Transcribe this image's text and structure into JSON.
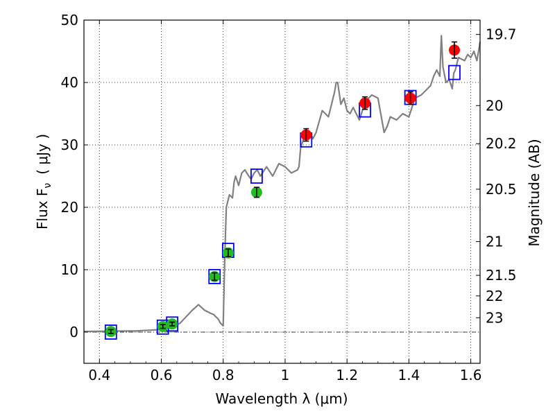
{
  "chart_data": {
    "type": "scatter",
    "xlabel": "Wavelength  λ (μm)",
    "ylabel_left": "Flux  F",
    "ylabel_left_sub": "ν",
    "ylabel_left_unit": "( μJy )",
    "ylabel_right": "Magnitude (AB)",
    "xlim": [
      0.35,
      1.63
    ],
    "ylim": [
      -5,
      50
    ],
    "grid": true,
    "x_ticks": [
      0.4,
      0.6,
      0.8,
      1.0,
      1.2,
      1.4,
      1.6
    ],
    "x_tick_labels": [
      "0.4",
      "0.6",
      "0.8",
      "1",
      "1.2",
      "1.4",
      "1.6"
    ],
    "y_ticks": [
      0,
      10,
      20,
      30,
      40,
      50
    ],
    "y_tick_labels": [
      "0",
      "10",
      "20",
      "30",
      "40",
      "50"
    ],
    "right_ticks": [
      {
        "label": "19.7",
        "flux": 47.7
      },
      {
        "label": "20",
        "flux": 36.3
      },
      {
        "label": "20.2",
        "flux": 30.2
      },
      {
        "label": "20.5",
        "flux": 22.9
      },
      {
        "label": "21",
        "flux": 14.5
      },
      {
        "label": "21.5",
        "flux": 9.1
      },
      {
        "label": "22",
        "flux": 5.8
      },
      {
        "label": "23",
        "flux": 2.3
      }
    ],
    "series": [
      {
        "kind": "line",
        "color": "#808080",
        "x": [
          0.35,
          0.52,
          0.6,
          0.62,
          0.64,
          0.66,
          0.7,
          0.72,
          0.74,
          0.76,
          0.765,
          0.77,
          0.775,
          0.78,
          0.785,
          0.79,
          0.8,
          0.805,
          0.81,
          0.82,
          0.83,
          0.835,
          0.84,
          0.85,
          0.86,
          0.87,
          0.88,
          0.89,
          0.9,
          0.91,
          0.92,
          0.94,
          0.96,
          0.98,
          1.0,
          1.02,
          1.04,
          1.045,
          1.05,
          1.06,
          1.07,
          1.08,
          1.09,
          1.1,
          1.12,
          1.13,
          1.14,
          1.15,
          1.16,
          1.165,
          1.17,
          1.18,
          1.19,
          1.2,
          1.21,
          1.22,
          1.24,
          1.26,
          1.28,
          1.3,
          1.32,
          1.33,
          1.34,
          1.36,
          1.38,
          1.4,
          1.42,
          1.44,
          1.46,
          1.47,
          1.48,
          1.49,
          1.5,
          1.505,
          1.51,
          1.52,
          1.53,
          1.54,
          1.545,
          1.55,
          1.56,
          1.58,
          1.59,
          1.6,
          1.61,
          1.62,
          1.63
        ],
        "y": [
          0.1,
          0.2,
          0.4,
          0.8,
          1.0,
          1.4,
          3.5,
          4.4,
          3.5,
          3.0,
          2.9,
          2.8,
          2.5,
          2.3,
          2.0,
          1.5,
          1.0,
          12.0,
          20.0,
          22.0,
          21.5,
          24.0,
          25.0,
          23.5,
          25.5,
          26.0,
          25.2,
          24.5,
          25.5,
          26.0,
          25.0,
          26.5,
          25.0,
          27.0,
          26.5,
          25.5,
          26.0,
          26.5,
          29.5,
          31.0,
          31.5,
          32.0,
          31.0,
          32.0,
          35.5,
          35.0,
          34.5,
          36.5,
          38.5,
          40.0,
          40.0,
          36.5,
          37.5,
          35.5,
          35.0,
          36.0,
          34.0,
          37.0,
          38.0,
          37.5,
          32.0,
          33.0,
          34.5,
          34.0,
          35.0,
          34.5,
          37.5,
          38.0,
          39.0,
          39.5,
          41.0,
          42.0,
          41.0,
          47.5,
          42.5,
          40.0,
          40.5,
          39.0,
          41.5,
          42.0,
          44.0,
          43.5,
          44.5,
          44.0,
          45.0,
          43.5,
          46.5
        ]
      },
      {
        "kind": "model-squares",
        "color": "#0000ff",
        "x": [
          0.437,
          0.605,
          0.635,
          0.772,
          0.816,
          0.908,
          1.068,
          1.258,
          1.405,
          1.547
        ],
        "y": [
          0.0,
          0.8,
          1.3,
          8.9,
          13.1,
          25.0,
          30.8,
          35.6,
          37.6,
          41.6
        ]
      },
      {
        "kind": "observed",
        "color": "#22bb22",
        "x": [
          0.437,
          0.605,
          0.635,
          0.772,
          0.816,
          0.908
        ],
        "y": [
          0.1,
          0.9,
          1.3,
          8.9,
          12.7,
          22.4
        ],
        "err": [
          0.3,
          0.3,
          0.3,
          0.6,
          0.6,
          0.8
        ]
      },
      {
        "kind": "observed",
        "color": "#ff0000",
        "x": [
          1.068,
          1.258,
          1.405,
          1.547
        ],
        "y": [
          31.6,
          36.7,
          37.5,
          45.2
        ],
        "err": [
          1.0,
          1.0,
          1.0,
          1.3
        ]
      }
    ]
  }
}
